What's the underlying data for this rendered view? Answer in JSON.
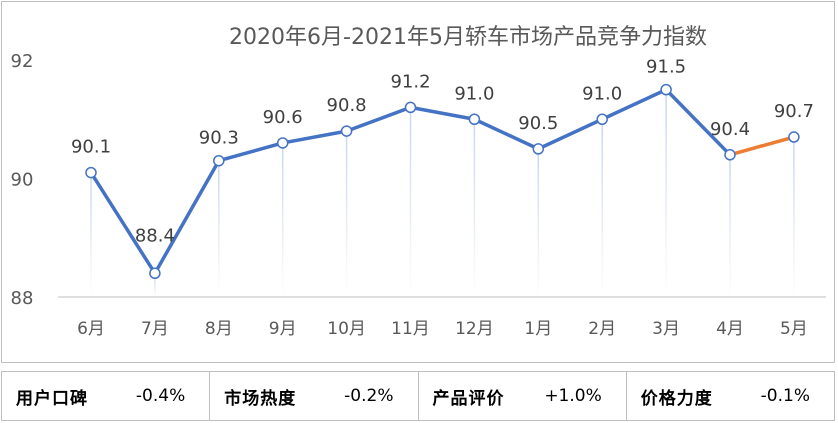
{
  "chart_data": {
    "type": "line",
    "title": "2020年6月-2021年5月轿车市场产品竞争力指数",
    "categories": [
      "6月",
      "7月",
      "8月",
      "9月",
      "10月",
      "11月",
      "12月",
      "1月",
      "2月",
      "3月",
      "4月",
      "5月"
    ],
    "series": [
      {
        "values": [
          90.1,
          88.4,
          90.3,
          90.6,
          90.8,
          91.2,
          91.0,
          90.5,
          91.0,
          91.5,
          90.4,
          90.7
        ]
      }
    ],
    "data_labels": [
      "90.1",
      "88.4",
      "90.3",
      "90.6",
      "90.8",
      "91.2",
      "91.0",
      "90.5",
      "91.0",
      "91.5",
      "90.4",
      "90.7"
    ],
    "yticks": [
      "88",
      "90",
      "92"
    ],
    "ylim": [
      88,
      92
    ],
    "line_color": "#4472c4",
    "highlight_color": "#ed7d31",
    "highlight_last_segment": true
  },
  "metrics": [
    {
      "label": "用户口碑",
      "value": "-0.4%"
    },
    {
      "label": "市场热度",
      "value": "-0.2%"
    },
    {
      "label": "产品评价",
      "value": "+1.0%"
    },
    {
      "label": "价格力度",
      "value": "-0.1%"
    }
  ]
}
